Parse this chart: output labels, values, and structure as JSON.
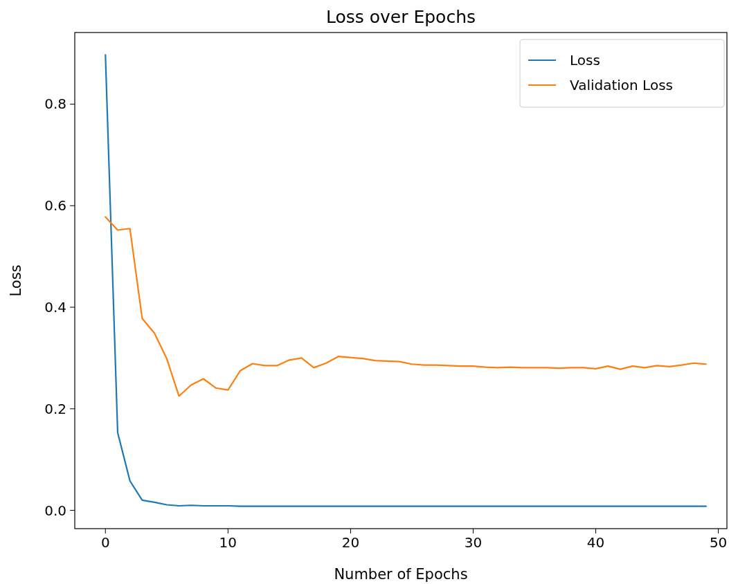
{
  "chart_data": {
    "type": "line",
    "title": "Loss over Epochs",
    "xlabel": "Number of Epochs",
    "ylabel": "Loss",
    "x": [
      0,
      1,
      2,
      3,
      4,
      5,
      6,
      7,
      8,
      9,
      10,
      11,
      12,
      13,
      14,
      15,
      16,
      17,
      18,
      19,
      20,
      21,
      22,
      23,
      24,
      25,
      26,
      27,
      28,
      29,
      30,
      31,
      32,
      33,
      34,
      35,
      36,
      37,
      38,
      39,
      40,
      41,
      42,
      43,
      44,
      45,
      46,
      47,
      48,
      49
    ],
    "series": [
      {
        "name": "Loss",
        "color": "#1f77b4",
        "values": [
          0.897,
          0.153,
          0.058,
          0.02,
          0.016,
          0.011,
          0.009,
          0.01,
          0.009,
          0.009,
          0.009,
          0.008,
          0.008,
          0.008,
          0.008,
          0.008,
          0.008,
          0.008,
          0.008,
          0.008,
          0.008,
          0.008,
          0.008,
          0.008,
          0.008,
          0.008,
          0.008,
          0.008,
          0.008,
          0.008,
          0.008,
          0.008,
          0.008,
          0.008,
          0.008,
          0.008,
          0.008,
          0.008,
          0.008,
          0.008,
          0.008,
          0.008,
          0.008,
          0.008,
          0.008,
          0.008,
          0.008,
          0.008,
          0.008,
          0.008
        ]
      },
      {
        "name": "Validation Loss",
        "color": "#ff7f0e",
        "values": [
          0.578,
          0.552,
          0.555,
          0.378,
          0.349,
          0.299,
          0.225,
          0.247,
          0.259,
          0.241,
          0.237,
          0.275,
          0.289,
          0.285,
          0.285,
          0.296,
          0.3,
          0.281,
          0.29,
          0.303,
          0.301,
          0.299,
          0.295,
          0.294,
          0.293,
          0.288,
          0.286,
          0.286,
          0.285,
          0.284,
          0.284,
          0.282,
          0.281,
          0.282,
          0.281,
          0.281,
          0.281,
          0.28,
          0.281,
          0.281,
          0.279,
          0.284,
          0.278,
          0.284,
          0.281,
          0.285,
          0.283,
          0.286,
          0.29,
          0.288
        ]
      }
    ],
    "xlim": [
      -2.5,
      50.7
    ],
    "xticks": [
      0,
      10,
      20,
      30,
      40,
      50
    ],
    "ylim": [
      -0.036,
      0.941
    ],
    "yticks": [
      {
        "value": 0,
        "label": "0.0"
      },
      {
        "value": 0.2,
        "label": "0.2"
      },
      {
        "value": 0.4,
        "label": "0.4"
      },
      {
        "value": 0.6,
        "label": "0.6"
      },
      {
        "value": 0.8,
        "label": "0.8"
      }
    ],
    "legend": "top right",
    "grid": false,
    "marker": "none",
    "line_style": "solid"
  }
}
